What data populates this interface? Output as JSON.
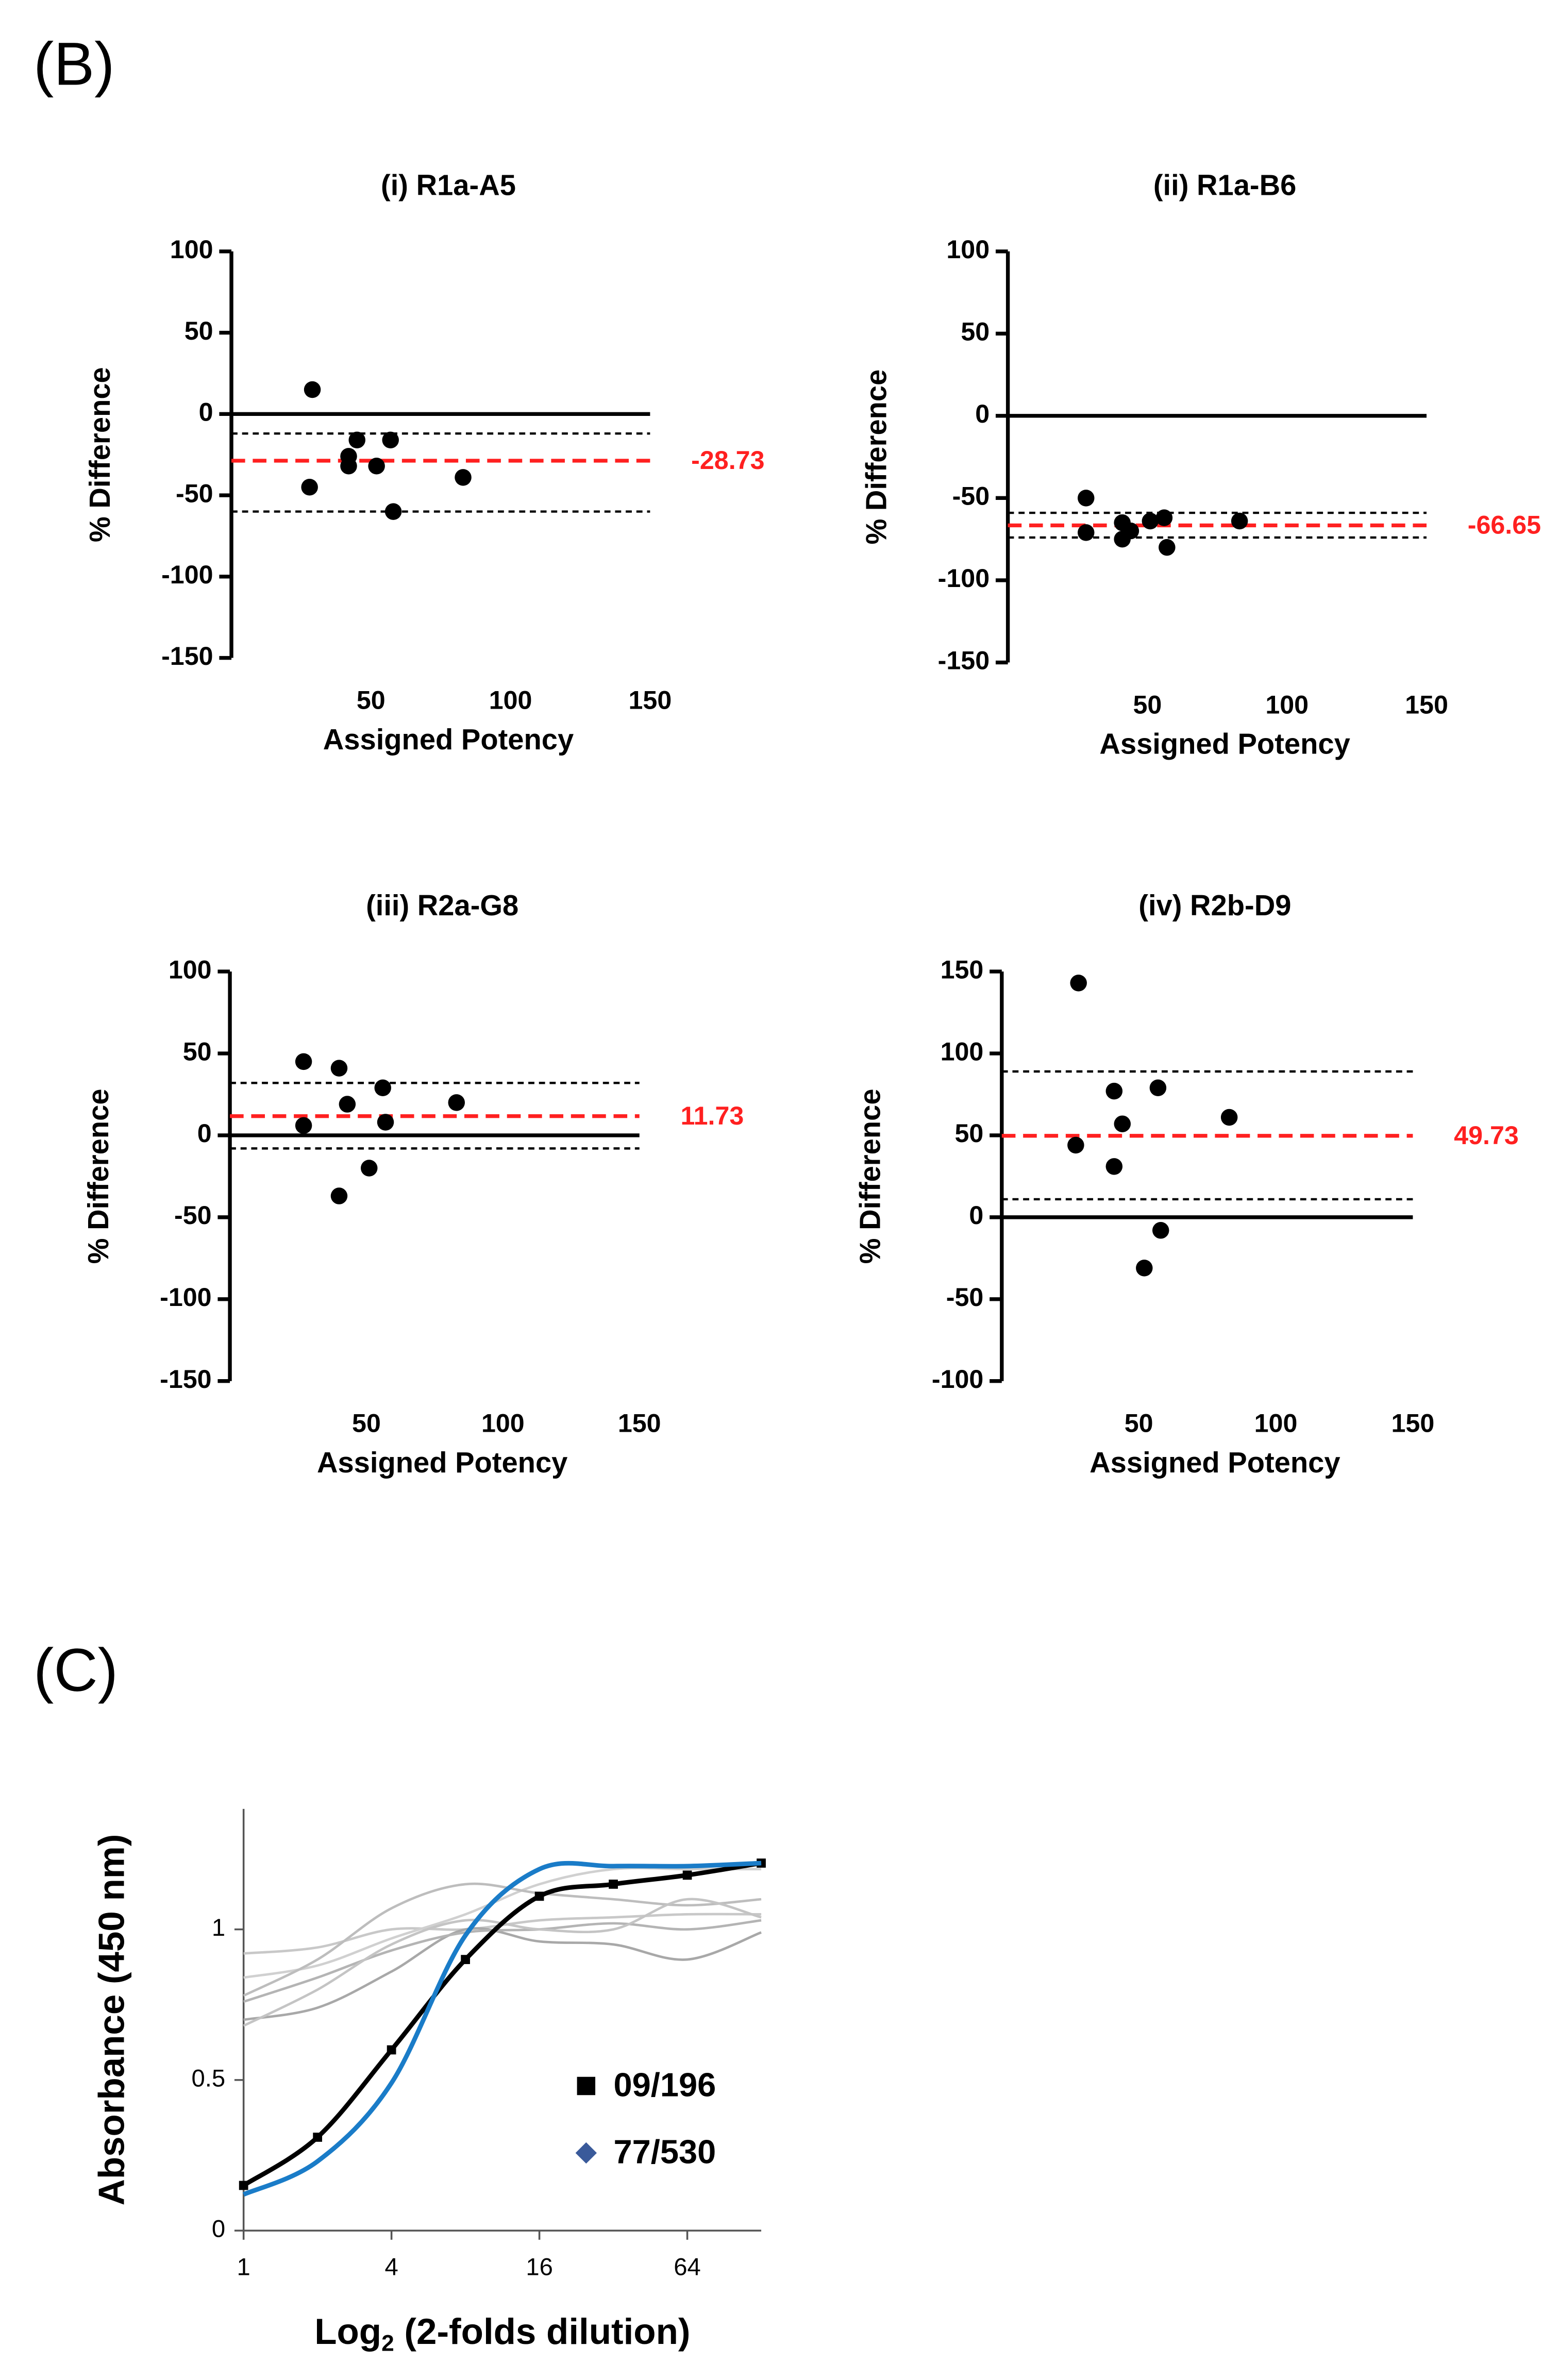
{
  "panels": [
    "(B)",
    "(C)"
  ],
  "chart_data": [
    {
      "type": "scatter",
      "title": "(i) R1a-A5",
      "xlabel": "Assigned Potency",
      "ylabel": "% Difference",
      "color": "#000000",
      "x": [
        29,
        28,
        45,
        42,
        42,
        52,
        57,
        58,
        83
      ],
      "values": [
        15,
        -45,
        -16,
        -26,
        -32,
        -32,
        -16,
        -60,
        -39
      ],
      "mean": -28.73,
      "mean_color": "#ff2020",
      "limits": [
        -12,
        -60
      ],
      "xlim": [
        0,
        150
      ],
      "xticks": [
        50,
        100,
        150
      ],
      "ylim": [
        -150,
        100
      ],
      "yticks": [
        -150,
        -100,
        -50,
        0,
        50,
        100
      ],
      "zero_line": true
    },
    {
      "type": "scatter",
      "title": "(ii) R1a-B6",
      "xlabel": "Assigned Potency",
      "ylabel": "% Difference",
      "color": "#000000",
      "x": [
        28,
        28,
        41,
        41,
        44,
        51,
        56,
        57,
        83
      ],
      "values": [
        -50,
        -71,
        -65,
        -75,
        -70,
        -64,
        -62,
        -80,
        -64
      ],
      "mean": -66.65,
      "mean_color": "#ff2020",
      "limits": [
        -59,
        -74
      ],
      "xlim": [
        0,
        150
      ],
      "xticks": [
        50,
        100,
        150
      ],
      "ylim": [
        -150,
        100
      ],
      "yticks": [
        -150,
        -100,
        -50,
        0,
        50,
        100
      ],
      "zero_line": true
    },
    {
      "type": "scatter",
      "title": "(iii) R2a-G8",
      "xlabel": "Assigned Potency",
      "ylabel": "% Difference",
      "color": "#000000",
      "x": [
        27,
        27,
        40,
        43,
        56,
        57,
        51,
        40,
        83
      ],
      "values": [
        45,
        6,
        41,
        19,
        29,
        8,
        -20,
        -37,
        20
      ],
      "mean": 11.73,
      "mean_color": "#ff2020",
      "limits": [
        32,
        -8
      ],
      "xlim": [
        0,
        150
      ],
      "xticks": [
        50,
        100,
        150
      ],
      "ylim": [
        -150,
        100
      ],
      "yticks": [
        -150,
        -100,
        -50,
        0,
        50,
        100
      ],
      "zero_line": true
    },
    {
      "type": "scatter",
      "title": "(iv) R2b-D9",
      "xlabel": "Assigned Potency",
      "ylabel": "% Difference",
      "color": "#000000",
      "x": [
        28,
        27,
        41,
        44,
        41,
        57,
        58,
        52,
        83
      ],
      "values": [
        143,
        44,
        77,
        57,
        31,
        79,
        -8,
        -31,
        61
      ],
      "mean": 49.73,
      "mean_color": "#ff2020",
      "limits": [
        89,
        11
      ],
      "xlim": [
        0,
        150
      ],
      "xticks": [
        50,
        100,
        150
      ],
      "ylim": [
        -100,
        150
      ],
      "yticks": [
        -100,
        -50,
        0,
        50,
        100,
        150
      ],
      "zero_line": true
    },
    {
      "type": "line",
      "xlabel": {
        "base": "Log",
        "sub": "2",
        "rest": " (2-folds dilution)"
      },
      "ylabel": "Absorbance (450 nm)",
      "xscale": "log2",
      "x": [
        1,
        2,
        4,
        8,
        16,
        32,
        64,
        128
      ],
      "xlim": [
        1,
        128
      ],
      "xticks": [
        1,
        4,
        16,
        64
      ],
      "ylim": [
        0,
        1.4
      ],
      "yticks": [
        0,
        0.5,
        1
      ],
      "legend": "lower right",
      "series": [
        {
          "color": "#c8c8c8",
          "values": [
            0.92,
            0.94,
            1.0,
            1.0,
            1.03,
            1.04,
            1.05,
            1.05
          ]
        },
        {
          "color": "#d0d0d0",
          "values": [
            0.84,
            0.88,
            0.97,
            1.05,
            1.15,
            1.2,
            1.2,
            1.2
          ]
        },
        {
          "color": "#bdbdbd",
          "values": [
            0.78,
            0.9,
            1.07,
            1.15,
            1.12,
            1.1,
            1.08,
            1.1
          ]
        },
        {
          "color": "#a8a8a8",
          "values": [
            0.7,
            0.74,
            0.86,
            1.0,
            0.96,
            0.95,
            0.9,
            0.99
          ]
        },
        {
          "color": "#b4b4b4",
          "values": [
            0.76,
            0.84,
            0.93,
            0.99,
            1.0,
            1.02,
            1.0,
            1.03
          ]
        },
        {
          "color": "#c4c4c4",
          "values": [
            0.68,
            0.8,
            0.95,
            1.03,
            1.0,
            1.0,
            1.1,
            1.04
          ]
        },
        {
          "name": "09/196",
          "color": "#000000",
          "marker": "square",
          "values": [
            0.15,
            0.31,
            0.6,
            0.9,
            1.11,
            1.15,
            1.18,
            1.22
          ]
        },
        {
          "name": "77/530",
          "color": "#1a7cc8",
          "marker": "diamond",
          "legend_color": "#3a5a9a",
          "values": [
            0.12,
            0.23,
            0.49,
            0.98,
            1.2,
            1.21,
            1.21,
            1.22
          ]
        }
      ]
    }
  ]
}
